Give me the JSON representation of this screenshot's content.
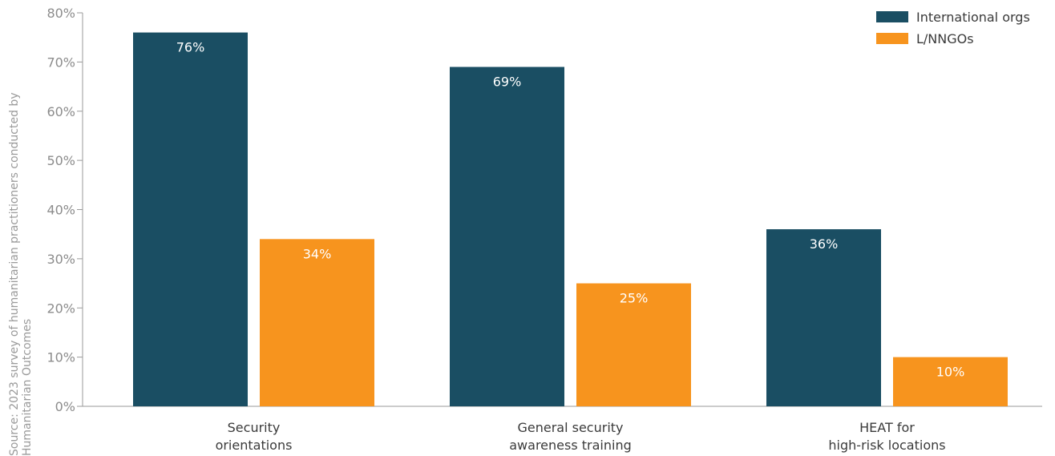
{
  "chart_data": {
    "type": "bar",
    "categories": [
      [
        "Security",
        "orientations"
      ],
      [
        "General security",
        "awareness training"
      ],
      [
        "HEAT for",
        "high-risk locations"
      ]
    ],
    "series": [
      {
        "name": "International orgs",
        "values": [
          76,
          69,
          36
        ],
        "labels": [
          "76%",
          "69%",
          "36%"
        ],
        "color": "#1a4e63"
      },
      {
        "name": "L/NNGOs",
        "values": [
          34,
          25,
          10
        ],
        "labels": [
          "34%",
          "25%",
          "10%"
        ],
        "color": "#f7941e"
      }
    ],
    "ylim": [
      0,
      80
    ],
    "yticks": [
      0,
      10,
      20,
      30,
      40,
      50,
      60,
      70,
      80
    ],
    "ytick_labels": [
      "0%",
      "10%",
      "20%",
      "30%",
      "40%",
      "50%",
      "60%",
      "70%",
      "80%"
    ],
    "legend_position": "top-right",
    "grid": false
  },
  "source_note": [
    "Source: 2023 survey of humanitarian practitioners conducted by",
    "Humanitarian Outcomes"
  ]
}
